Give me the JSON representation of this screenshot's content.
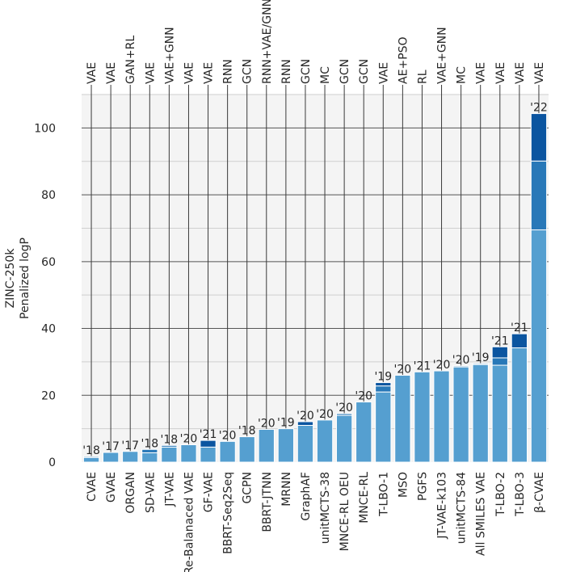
{
  "chart_data": {
    "type": "bar",
    "ylabel_line1": "ZINC-250k",
    "ylabel_line2": "Penalized logP",
    "ylim": [
      0,
      110
    ],
    "yticks": [
      0,
      20,
      40,
      60,
      80,
      100
    ],
    "grid": true,
    "categories": [
      "CVAE",
      "GVAE",
      "ORGAN",
      "SD-VAE",
      "JT-VAE",
      "Re-Balanaced VAE",
      "GF-VAE",
      "BBRT-Seq2Seq",
      "GCPN",
      "BBRT-JTNN",
      "MRNN",
      "GraphAF",
      "unitMCTS-38",
      "MNCE-RL OEU",
      "MNCE-RL",
      "T-LBO-1",
      "MSO",
      "PGFS",
      "JT-VAE-k103",
      "unitMCTS-84",
      "All SMILES VAE",
      "T-LBO-2",
      "T-LBO-3",
      "β-CVAE"
    ],
    "top_labels": [
      "VAE",
      "VAE",
      "GAN+RL",
      "VAE",
      "VAE+GNN",
      "VAE",
      "VAE",
      "RNN",
      "GCN",
      "RNN+VAE/GNN",
      "RNN",
      "GCN",
      "MC",
      "GCN",
      "GCN",
      "VAE",
      "AE+PSO",
      "RL",
      "VAE+GNN",
      "MC",
      "VAE",
      "VAE",
      "VAE",
      "VAE"
    ],
    "years": [
      "'18",
      "'17",
      "'17",
      "'18",
      "'18",
      "'20",
      "'21",
      "'20",
      "'18",
      "'20",
      "'19",
      "'20",
      "'20",
      "'20",
      "'20",
      "'19",
      "'20",
      "'21",
      "'20",
      "'20",
      "'19",
      "'21",
      "'21",
      "'22"
    ],
    "series": [
      {
        "values": [
          1.4,
          2.9,
          3.2,
          2.8,
          4.5,
          5.2,
          4.5,
          6.2,
          7.6,
          9.8,
          10.0,
          11.0,
          12.6,
          14.0,
          18.0,
          21.0,
          26.0,
          27.0,
          27.3,
          28.5,
          29.2,
          29.0,
          34.2,
          69.5
        ]
      },
      {
        "values": [
          0.3,
          0.0,
          0.0,
          1.0,
          0.5,
          0.0,
          0.0,
          0.0,
          0.0,
          0.0,
          0.0,
          0.0,
          0.0,
          0.5,
          0.0,
          1.8,
          0.0,
          0.0,
          0.0,
          0.3,
          0.3,
          2.2,
          0.0,
          20.6
        ]
      },
      {
        "values": [
          0.0,
          0.0,
          0.0,
          0.0,
          0.0,
          0.0,
          2.0,
          0.0,
          0.0,
          0.0,
          0.0,
          1.1,
          0.0,
          0.0,
          0.0,
          1.0,
          0.0,
          0.0,
          0.0,
          0.0,
          0.0,
          3.3,
          4.2,
          14.2
        ]
      }
    ],
    "colors": {
      "light": "#559fd0",
      "mid": "#2878b8",
      "dark": "#0b55a0"
    },
    "background": "#f4f4f4",
    "grid_color": "#555555",
    "minor_grid_color": "#cfcfcf"
  }
}
